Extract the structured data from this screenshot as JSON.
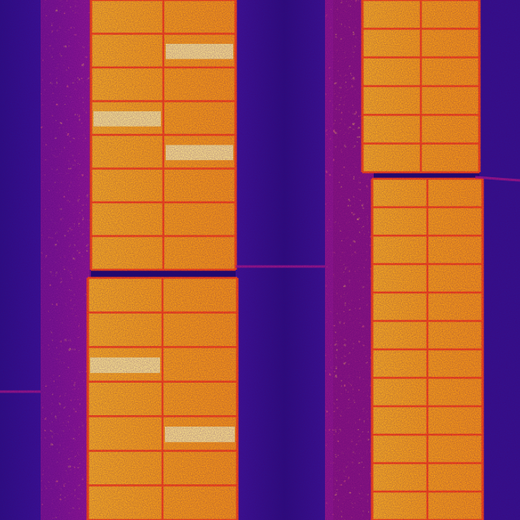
{
  "image": {
    "kind": "thermal-aerial",
    "subject": "solar-panel-rows",
    "palette": {
      "cold": "#2a0f86",
      "cool": "#4a1aa8",
      "mid": "#b0188a",
      "warm": "#ff3a1a",
      "hot": "#ffa012",
      "hotter": "#ffc02a",
      "hottest": "#fff2a0",
      "cell_line": "#ff4a10"
    },
    "panel_strings": [
      {
        "id": "left-upper",
        "rows": 8,
        "cols": 2,
        "hotspot_cells": [
          [
            1,
            1
          ],
          [
            3,
            0
          ],
          [
            4,
            1
          ]
        ]
      },
      {
        "id": "left-lower",
        "rows": 7,
        "cols": 2,
        "hotspot_cells": [
          [
            2,
            0
          ],
          [
            4,
            1
          ]
        ]
      },
      {
        "id": "right-upper",
        "rows": 6,
        "cols": 2,
        "hotspot_cells": []
      },
      {
        "id": "right-lower",
        "rows": 12,
        "cols": 2,
        "hotspot_cells": []
      }
    ]
  }
}
